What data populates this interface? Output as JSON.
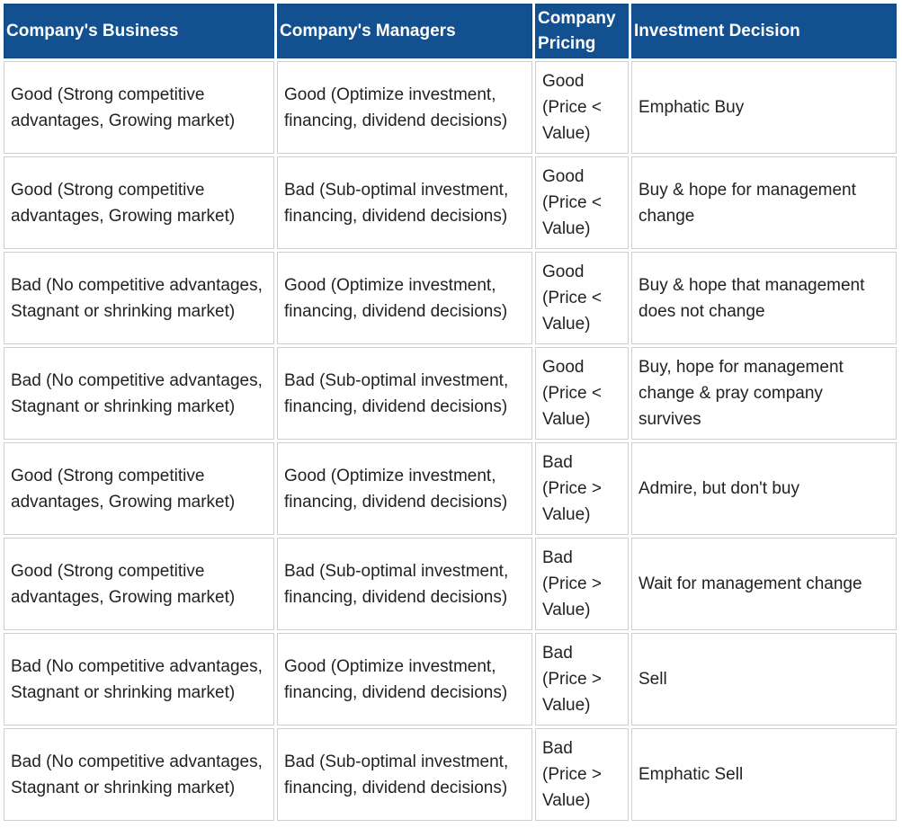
{
  "headers": {
    "business": "Company's Business",
    "managers": "Company's Managers",
    "pricing": "Company Pricing",
    "decision": "Investment Decision"
  },
  "rows": [
    {
      "business": "Good (Strong competitive advantages, Growing market)",
      "managers": "Good (Optimize investment, financing, dividend decisions)",
      "pricing": "Good (Price < Value)",
      "decision": "Emphatic Buy"
    },
    {
      "business": "Good (Strong competitive advantages, Growing market)",
      "managers": "Bad (Sub-optimal investment, financing, dividend decisions)",
      "pricing": "Good (Price < Value)",
      "decision": "Buy & hope for management change"
    },
    {
      "business": "Bad (No competitive advantages, Stagnant or shrinking market)",
      "managers": "Good (Optimize investment, financing, dividend decisions)",
      "pricing": "Good (Price < Value)",
      "decision": "Buy & hope that management does not change"
    },
    {
      "business": "Bad (No competitive advantages, Stagnant or shrinking market)",
      "managers": "Bad (Sub-optimal investment, financing, dividend decisions)",
      "pricing": "Good (Price < Value)",
      "decision": "Buy, hope for management change & pray company survives"
    },
    {
      "business": "Good (Strong competitive advantages, Growing market)",
      "managers": "Good (Optimize investment, financing, dividend decisions)",
      "pricing": "Bad (Price > Value)",
      "decision": "Admire, but don't buy"
    },
    {
      "business": "Good (Strong competitive advantages, Growing market)",
      "managers": "Bad (Sub-optimal investment, financing, dividend decisions)",
      "pricing": "Bad (Price > Value)",
      "decision": "Wait for management change"
    },
    {
      "business": "Bad (No competitive advantages, Stagnant or shrinking market)",
      "managers": "Good (Optimize investment, financing, dividend decisions)",
      "pricing": "Bad (Price > Value)",
      "decision": "Sell"
    },
    {
      "business": "Bad (No competitive advantages, Stagnant or shrinking market)",
      "managers": "Bad (Sub-optimal investment, financing, dividend decisions)",
      "pricing": "Bad (Price > Value)",
      "decision": "Emphatic Sell"
    }
  ]
}
